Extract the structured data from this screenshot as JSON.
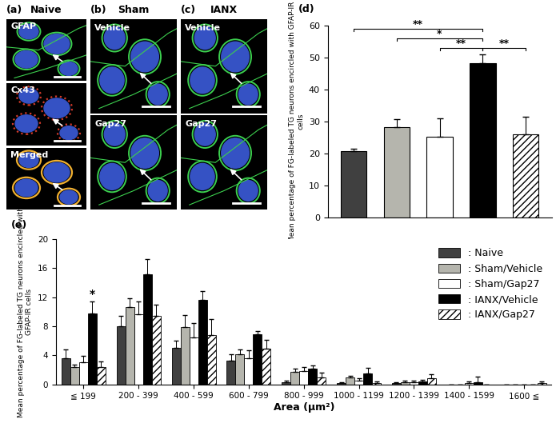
{
  "panels": [
    {
      "title": "(a)",
      "subtitle": "Naive",
      "images": [
        "GFAP",
        "Cx43",
        "Merged"
      ]
    },
    {
      "title": "(b)",
      "subtitle": "Sham",
      "images": [
        "Vehicle",
        "Gap27"
      ]
    },
    {
      "title": "(c)",
      "subtitle": "IANX",
      "images": [
        "Vehicle",
        "Gap27"
      ]
    }
  ],
  "chart_data": [
    {
      "type": "bar",
      "title": "(d)",
      "categories": [
        null
      ],
      "ylabel": "Mean percentage of FG-labeled TG neurons encircled with GFAP-IR cells",
      "ylim": [
        0,
        60
      ],
      "yticks": [
        0,
        10,
        20,
        30,
        40,
        50,
        60
      ],
      "series": [
        {
          "name": ": Naive",
          "color": "#404040",
          "values": [
            20.8
          ],
          "errors": [
            0.8
          ]
        },
        {
          "name": ": Sham/Vehicle",
          "color": "#b5b5ad",
          "values": [
            28.3
          ],
          "errors": [
            2.5
          ]
        },
        {
          "name": ": Sham/Gap27",
          "color": "#ffffff",
          "values": [
            25.3
          ],
          "errors": [
            5.8
          ]
        },
        {
          "name": ": IANX/Vehicle",
          "color": "#000000",
          "values": [
            48.2
          ],
          "errors": [
            2.8
          ]
        },
        {
          "name": ": IANX/Gap27",
          "color": "#ffffff",
          "values": [
            26.1
          ],
          "errors": [
            5.4
          ]
        }
      ],
      "annotations": [
        {
          "from": ": Naive",
          "to": ": IANX/Vehicle",
          "text": "**"
        },
        {
          "from": ": Sham/Vehicle",
          "to": ": IANX/Vehicle",
          "text": "*"
        },
        {
          "from": ": Sham/Gap27",
          "to": ": IANX/Vehicle",
          "text": "**"
        },
        {
          "from": ": IANX/Vehicle",
          "to": ": IANX/Gap27",
          "text": "**"
        }
      ]
    },
    {
      "type": "bar",
      "title": "(e)",
      "categories": [
        "≦ 199",
        "200 - 399",
        "400 - 599",
        "600 - 799",
        "800 - 999",
        "1000 - 1199",
        "1200 - 1399",
        "1400 - 1599",
        "1600 ≦"
      ],
      "xlabel": "Area (μm²)",
      "ylabel": "Mean percentage of FG-labeled TG neurons encircled with GFAP-IR cells",
      "ylim": [
        0,
        20
      ],
      "yticks": [
        0,
        4,
        8,
        12,
        16,
        20
      ],
      "legend": "upper right",
      "series": [
        {
          "name": ": Naive",
          "color": "#404040",
          "values": [
            3.6,
            8.0,
            5.0,
            3.3,
            0.3,
            0.2,
            0.2,
            0.0,
            0.0
          ],
          "errors": [
            1.2,
            1.4,
            1.0,
            0.8,
            0.2,
            0.1,
            0.1,
            0.0,
            0.0
          ]
        },
        {
          "name": ": Sham/Vehicle",
          "color": "#b5b5ad",
          "values": [
            2.4,
            10.6,
            7.9,
            4.1,
            1.7,
            1.0,
            0.3,
            0.0,
            0.0
          ],
          "errors": [
            0.3,
            1.2,
            1.6,
            0.7,
            0.5,
            0.2,
            0.2,
            0.0,
            0.0
          ]
        },
        {
          "name": ": Sham/Gap27",
          "color": "#ffffff",
          "values": [
            3.0,
            9.7,
            6.5,
            3.6,
            1.8,
            0.5,
            0.3,
            0.2,
            0.0
          ],
          "errors": [
            0.9,
            1.7,
            1.9,
            1.1,
            0.6,
            0.3,
            0.2,
            0.2,
            0.0
          ]
        },
        {
          "name": ": IANX/Vehicle",
          "color": "#000000",
          "values": [
            9.8,
            15.2,
            11.6,
            6.9,
            2.2,
            1.5,
            0.4,
            0.3,
            0.0
          ],
          "errors": [
            1.6,
            2.0,
            1.2,
            0.4,
            0.4,
            0.8,
            0.2,
            0.8,
            0.0
          ]
        },
        {
          "name": ": IANX/Gap27",
          "color": "#ffffff",
          "values": [
            2.4,
            9.4,
            6.8,
            4.9,
            1.0,
            0.2,
            0.8,
            0.0,
            0.2
          ],
          "errors": [
            0.7,
            1.6,
            2.2,
            1.2,
            0.6,
            0.2,
            0.6,
            0.0,
            0.2
          ]
        }
      ],
      "annotations": [
        {
          "category": "≦ 199",
          "series": ": IANX/Vehicle",
          "text": "*"
        }
      ]
    }
  ]
}
